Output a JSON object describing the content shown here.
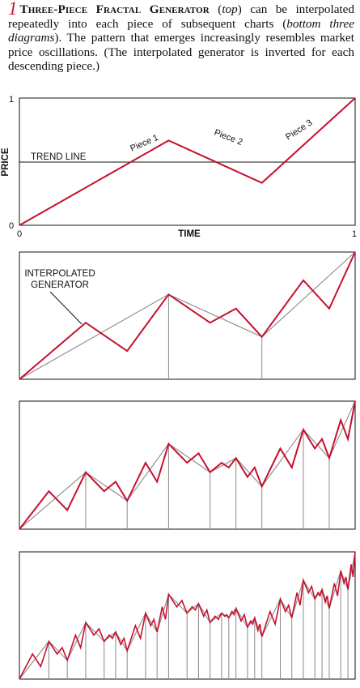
{
  "caption": {
    "number": "1",
    "heading": "Three-Piece Fractal Generator",
    "part1": " (",
    "top_word": "top",
    "part2": ") can be interpolated repeatedly into each piece of subsequent charts (",
    "bottom_words": "bottom three diagrams",
    "part3": "). The pattern that emerges increasingly resembles market price oscillations. (The interpolated generator is inverted for each descending piece.)"
  },
  "top_chart": {
    "y_axis_label": "PRICE",
    "x_axis_label": "TIME",
    "y_tick_top": "1",
    "y_tick_bottom": "0",
    "x_tick_left": "0",
    "x_tick_right": "1",
    "trend_label": "TREND LINE",
    "piece_labels": [
      "Piece 1",
      "Piece 2",
      "Piece 3"
    ]
  },
  "second_chart": {
    "annotation_line1": "INTERPOLATED",
    "annotation_line2": "GENERATOR"
  },
  "chart_data": {
    "type": "line",
    "generator": {
      "x": [
        0,
        0.4444,
        0.7222,
        1
      ],
      "y": [
        0,
        0.6667,
        0.3333,
        1
      ]
    },
    "iterations_shown": 4,
    "xlim": [
      0,
      1
    ],
    "ylim": [
      0,
      1
    ],
    "trend_line": {
      "x": [
        0,
        1
      ],
      "y": [
        0.5,
        0.5
      ]
    },
    "colors": {
      "fractal": "#c8102e",
      "previous_level": "#8a8a8a",
      "axes": "#111111"
    }
  }
}
